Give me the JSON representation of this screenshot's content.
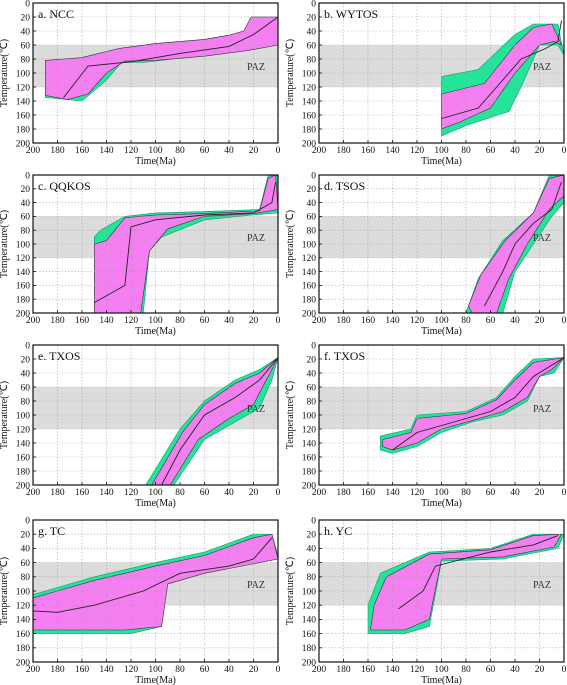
{
  "colors": {
    "good": "#22e59a",
    "acceptable": "#f37ff0",
    "paz_band": "#dcdcdc",
    "frame": "#111111",
    "grid": "#9a9a9a",
    "path": "#222222"
  },
  "chart_data": [
    {
      "id": "a",
      "type": "area",
      "title": "a. NCC",
      "xlabel": "Time(Ma)",
      "ylabel": "Temperature(℃)",
      "xlim": [
        200,
        0
      ],
      "ylim": [
        0,
        200
      ],
      "xticks": [
        200,
        180,
        160,
        140,
        120,
        100,
        80,
        60,
        40,
        20,
        0
      ],
      "yticks": [
        0,
        20,
        40,
        60,
        80,
        100,
        120,
        140,
        160,
        180,
        200
      ],
      "y_reversed": true,
      "grid": true,
      "paz": {
        "label": "PAZ",
        "top": 60,
        "bottom": 120
      },
      "good": [
        [
          190,
          90
        ],
        [
          165,
          80
        ],
        [
          130,
          65
        ],
        [
          100,
          58
        ],
        [
          60,
          52
        ],
        [
          40,
          46
        ],
        [
          28,
          42
        ],
        [
          22,
          20
        ],
        [
          0,
          20
        ],
        [
          0,
          55
        ],
        [
          20,
          62
        ],
        [
          60,
          75
        ],
        [
          110,
          85
        ],
        [
          128,
          85
        ],
        [
          140,
          110
        ],
        [
          160,
          140
        ],
        [
          190,
          135
        ]
      ],
      "acceptable": [
        [
          190,
          82
        ],
        [
          160,
          78
        ],
        [
          130,
          65
        ],
        [
          100,
          58
        ],
        [
          60,
          52
        ],
        [
          40,
          46
        ],
        [
          28,
          40
        ],
        [
          22,
          20
        ],
        [
          0,
          20
        ],
        [
          0,
          60
        ],
        [
          25,
          68
        ],
        [
          60,
          76
        ],
        [
          100,
          82
        ],
        [
          125,
          83
        ],
        [
          140,
          100
        ],
        [
          155,
          130
        ],
        [
          172,
          138
        ],
        [
          190,
          132
        ]
      ],
      "path": [
        [
          175,
          135
        ],
        [
          155,
          90
        ],
        [
          120,
          84
        ],
        [
          80,
          72
        ],
        [
          40,
          62
        ],
        [
          20,
          45
        ],
        [
          0,
          20
        ]
      ]
    },
    {
      "id": "b",
      "type": "area",
      "title": "b. WYTOS",
      "xlabel": "Time(Ma)",
      "ylabel": "Temperature(℃)",
      "xlim": [
        200,
        0
      ],
      "ylim": [
        0,
        200
      ],
      "xticks": [
        200,
        180,
        160,
        140,
        120,
        100,
        80,
        60,
        40,
        20,
        0
      ],
      "yticks": [
        0,
        20,
        40,
        60,
        80,
        100,
        120,
        140,
        160,
        180,
        200
      ],
      "y_reversed": true,
      "grid": true,
      "paz": {
        "label": "PAZ",
        "top": 60,
        "bottom": 120
      },
      "good": [
        [
          100,
          105
        ],
        [
          70,
          95
        ],
        [
          40,
          45
        ],
        [
          25,
          30
        ],
        [
          5,
          30
        ],
        [
          0,
          75
        ],
        [
          5,
          60
        ],
        [
          20,
          60
        ],
        [
          35,
          120
        ],
        [
          45,
          155
        ],
        [
          80,
          175
        ],
        [
          100,
          190
        ]
      ],
      "acceptable": [
        [
          100,
          130
        ],
        [
          65,
          115
        ],
        [
          40,
          60
        ],
        [
          25,
          35
        ],
        [
          10,
          30
        ],
        [
          2,
          60
        ],
        [
          8,
          55
        ],
        [
          20,
          60
        ],
        [
          40,
          100
        ],
        [
          60,
          150
        ],
        [
          85,
          170
        ],
        [
          100,
          180
        ]
      ],
      "path": [
        [
          100,
          165
        ],
        [
          70,
          150
        ],
        [
          50,
          110
        ],
        [
          35,
          80
        ],
        [
          15,
          65
        ],
        [
          5,
          55
        ],
        [
          2,
          25
        ]
      ]
    },
    {
      "id": "c",
      "type": "area",
      "title": "c. QQKOS",
      "xlabel": "Time(Ma)",
      "ylabel": "Temperature(℃)",
      "xlim": [
        200,
        0
      ],
      "ylim": [
        0,
        200
      ],
      "xticks": [
        200,
        180,
        160,
        140,
        120,
        100,
        80,
        60,
        40,
        20,
        0
      ],
      "yticks": [
        0,
        20,
        40,
        60,
        80,
        100,
        120,
        140,
        160,
        180,
        200
      ],
      "y_reversed": true,
      "grid": true,
      "paz": {
        "label": "PAZ",
        "top": 60,
        "bottom": 120
      },
      "good": [
        [
          150,
          90
        ],
        [
          145,
          80
        ],
        [
          125,
          60
        ],
        [
          100,
          55
        ],
        [
          60,
          53
        ],
        [
          15,
          50
        ],
        [
          8,
          0
        ],
        [
          0,
          0
        ],
        [
          0,
          55
        ],
        [
          20,
          58
        ],
        [
          60,
          65
        ],
        [
          95,
          90
        ],
        [
          105,
          110
        ],
        [
          110,
          200
        ],
        [
          150,
          200
        ]
      ],
      "acceptable": [
        [
          150,
          100
        ],
        [
          140,
          95
        ],
        [
          125,
          62
        ],
        [
          100,
          58
        ],
        [
          60,
          56
        ],
        [
          15,
          52
        ],
        [
          8,
          5
        ],
        [
          2,
          0
        ],
        [
          0,
          50
        ],
        [
          20,
          56
        ],
        [
          60,
          60
        ],
        [
          90,
          78
        ],
        [
          105,
          110
        ],
        [
          112,
          200
        ],
        [
          150,
          200
        ]
      ],
      "path": [
        [
          150,
          185
        ],
        [
          125,
          160
        ],
        [
          120,
          75
        ],
        [
          100,
          65
        ],
        [
          60,
          58
        ],
        [
          20,
          55
        ],
        [
          5,
          40
        ],
        [
          2,
          10
        ]
      ]
    },
    {
      "id": "d",
      "type": "area",
      "title": "d. TSOS",
      "xlabel": "Time(Ma)",
      "ylabel": "Temperature(℃)",
      "xlim": [
        200,
        0
      ],
      "ylim": [
        0,
        200
      ],
      "xticks": [
        200,
        180,
        160,
        140,
        120,
        100,
        80,
        60,
        40,
        20,
        0
      ],
      "yticks": [
        0,
        20,
        40,
        60,
        80,
        100,
        120,
        140,
        160,
        180,
        200
      ],
      "y_reversed": true,
      "grid": true,
      "paz": {
        "label": "PAZ",
        "top": 60,
        "bottom": 120
      },
      "good": [
        [
          80,
          200
        ],
        [
          70,
          150
        ],
        [
          50,
          95
        ],
        [
          25,
          55
        ],
        [
          12,
          0
        ],
        [
          0,
          0
        ],
        [
          0,
          40
        ],
        [
          10,
          60
        ],
        [
          25,
          100
        ],
        [
          40,
          140
        ],
        [
          50,
          200
        ]
      ],
      "acceptable": [
        [
          78,
          190
        ],
        [
          68,
          145
        ],
        [
          48,
          95
        ],
        [
          25,
          55
        ],
        [
          12,
          5
        ],
        [
          0,
          0
        ],
        [
          0,
          30
        ],
        [
          12,
          50
        ],
        [
          30,
          100
        ],
        [
          45,
          150
        ],
        [
          55,
          200
        ],
        [
          75,
          200
        ]
      ],
      "path": [
        [
          65,
          190
        ],
        [
          50,
          140
        ],
        [
          40,
          100
        ],
        [
          25,
          70
        ],
        [
          10,
          50
        ],
        [
          2,
          10
        ]
      ]
    },
    {
      "id": "e",
      "type": "area",
      "title": "e. TXOS",
      "xlabel": "Time(Ma)",
      "ylabel": "Temperature(℃)",
      "xlim": [
        200,
        0
      ],
      "ylim": [
        0,
        200
      ],
      "xticks": [
        200,
        180,
        160,
        140,
        120,
        100,
        80,
        60,
        40,
        20,
        0
      ],
      "yticks": [
        0,
        20,
        40,
        60,
        80,
        100,
        120,
        140,
        160,
        180,
        200
      ],
      "y_reversed": true,
      "grid": true,
      "paz": {
        "label": "PAZ",
        "top": 60,
        "bottom": 120
      },
      "good": [
        [
          108,
          200
        ],
        [
          80,
          120
        ],
        [
          60,
          80
        ],
        [
          35,
          50
        ],
        [
          15,
          35
        ],
        [
          0,
          18
        ],
        [
          5,
          50
        ],
        [
          15,
          90
        ],
        [
          35,
          110
        ],
        [
          60,
          135
        ],
        [
          85,
          200
        ]
      ],
      "acceptable": [
        [
          103,
          200
        ],
        [
          78,
          125
        ],
        [
          60,
          85
        ],
        [
          35,
          55
        ],
        [
          15,
          40
        ],
        [
          0,
          18
        ],
        [
          8,
          45
        ],
        [
          20,
          85
        ],
        [
          40,
          105
        ],
        [
          65,
          135
        ],
        [
          88,
          200
        ]
      ],
      "path": [
        [
          95,
          200
        ],
        [
          80,
          150
        ],
        [
          60,
          100
        ],
        [
          35,
          75
        ],
        [
          15,
          50
        ],
        [
          0,
          18
        ]
      ]
    },
    {
      "id": "f",
      "type": "area",
      "title": "f. TXOS",
      "xlabel": "Time(Ma)",
      "ylabel": "Temperature(℃)",
      "xlim": [
        200,
        0
      ],
      "ylim": [
        0,
        200
      ],
      "xticks": [
        200,
        180,
        160,
        140,
        120,
        100,
        80,
        60,
        40,
        20,
        0
      ],
      "yticks": [
        0,
        20,
        40,
        60,
        80,
        100,
        120,
        140,
        160,
        180,
        200
      ],
      "y_reversed": true,
      "grid": true,
      "paz": {
        "label": "PAZ",
        "top": 60,
        "bottom": 120
      },
      "good": [
        [
          150,
          130
        ],
        [
          125,
          120
        ],
        [
          120,
          100
        ],
        [
          80,
          95
        ],
        [
          55,
          75
        ],
        [
          40,
          45
        ],
        [
          25,
          20
        ],
        [
          0,
          18
        ],
        [
          8,
          40
        ],
        [
          20,
          45
        ],
        [
          30,
          80
        ],
        [
          50,
          100
        ],
        [
          75,
          110
        ],
        [
          100,
          125
        ],
        [
          120,
          145
        ],
        [
          140,
          155
        ],
        [
          150,
          150
        ]
      ],
      "acceptable": [
        [
          148,
          135
        ],
        [
          125,
          125
        ],
        [
          120,
          105
        ],
        [
          80,
          98
        ],
        [
          55,
          78
        ],
        [
          40,
          50
        ],
        [
          25,
          25
        ],
        [
          0,
          18
        ],
        [
          10,
          35
        ],
        [
          20,
          45
        ],
        [
          30,
          75
        ],
        [
          50,
          95
        ],
        [
          75,
          108
        ],
        [
          100,
          120
        ],
        [
          120,
          140
        ],
        [
          140,
          150
        ],
        [
          148,
          145
        ]
      ],
      "path": [
        [
          140,
          150
        ],
        [
          120,
          125
        ],
        [
          90,
          110
        ],
        [
          60,
          95
        ],
        [
          40,
          75
        ],
        [
          25,
          45
        ],
        [
          0,
          18
        ]
      ]
    },
    {
      "id": "g",
      "type": "area",
      "title": "g. TC",
      "xlabel": "Time(Ma)",
      "ylabel": "Temperature(℃)",
      "xlim": [
        200,
        0
      ],
      "ylim": [
        0,
        200
      ],
      "xticks": [
        200,
        180,
        160,
        140,
        120,
        100,
        80,
        60,
        40,
        20,
        0
      ],
      "yticks": [
        0,
        20,
        40,
        60,
        80,
        100,
        120,
        140,
        160,
        180,
        200
      ],
      "y_reversed": true,
      "grid": true,
      "paz": {
        "label": "PAZ",
        "top": 60,
        "bottom": 120
      },
      "good": [
        [
          200,
          105
        ],
        [
          180,
          95
        ],
        [
          150,
          80
        ],
        [
          100,
          60
        ],
        [
          60,
          45
        ],
        [
          20,
          20
        ],
        [
          5,
          20
        ],
        [
          0,
          50
        ],
        [
          10,
          55
        ],
        [
          60,
          70
        ],
        [
          90,
          85
        ],
        [
          95,
          150
        ],
        [
          120,
          160
        ],
        [
          160,
          160
        ],
        [
          200,
          160
        ]
      ],
      "acceptable": [
        [
          200,
          110
        ],
        [
          180,
          100
        ],
        [
          150,
          85
        ],
        [
          100,
          65
        ],
        [
          60,
          50
        ],
        [
          20,
          25
        ],
        [
          5,
          20
        ],
        [
          0,
          55
        ],
        [
          15,
          60
        ],
        [
          60,
          75
        ],
        [
          90,
          90
        ],
        [
          95,
          150
        ],
        [
          125,
          155
        ],
        [
          160,
          155
        ],
        [
          200,
          155
        ]
      ],
      "path": [
        [
          200,
          128
        ],
        [
          180,
          130
        ],
        [
          150,
          120
        ],
        [
          110,
          100
        ],
        [
          80,
          75
        ],
        [
          40,
          65
        ],
        [
          20,
          55
        ],
        [
          5,
          25
        ]
      ]
    },
    {
      "id": "h",
      "type": "area",
      "title": "h. YC",
      "xlabel": "Time(Ma)",
      "ylabel": "Temperature(℃)",
      "xlim": [
        200,
        0
      ],
      "ylim": [
        0,
        200
      ],
      "xticks": [
        200,
        180,
        160,
        140,
        120,
        100,
        80,
        60,
        40,
        20,
        0
      ],
      "yticks": [
        0,
        20,
        40,
        60,
        80,
        100,
        120,
        140,
        160,
        180,
        200
      ],
      "y_reversed": true,
      "grid": true,
      "paz": {
        "label": "PAZ",
        "top": 60,
        "bottom": 120
      },
      "good": [
        [
          160,
          120
        ],
        [
          150,
          75
        ],
        [
          110,
          45
        ],
        [
          60,
          40
        ],
        [
          25,
          20
        ],
        [
          0,
          20
        ],
        [
          5,
          40
        ],
        [
          50,
          55
        ],
        [
          100,
          58
        ],
        [
          110,
          150
        ],
        [
          130,
          160
        ],
        [
          160,
          160
        ]
      ],
      "acceptable": [
        [
          155,
          120
        ],
        [
          145,
          80
        ],
        [
          110,
          48
        ],
        [
          60,
          42
        ],
        [
          25,
          22
        ],
        [
          2,
          20
        ],
        [
          8,
          38
        ],
        [
          50,
          52
        ],
        [
          100,
          55
        ],
        [
          110,
          140
        ],
        [
          130,
          155
        ],
        [
          158,
          155
        ]
      ],
      "path": [
        [
          135,
          125
        ],
        [
          115,
          100
        ],
        [
          105,
          65
        ],
        [
          60,
          45
        ],
        [
          25,
          35
        ],
        [
          5,
          22
        ]
      ]
    }
  ]
}
